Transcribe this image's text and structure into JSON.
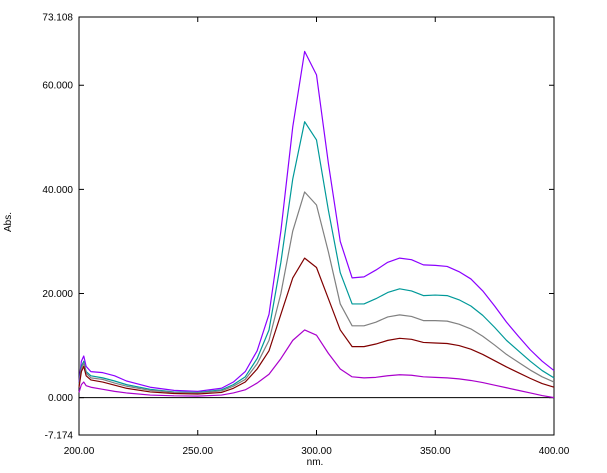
{
  "chart_data": {
    "type": "line",
    "xlabel": "nm.",
    "ylabel": "Abs.",
    "xlim": [
      200.0,
      400.0
    ],
    "ylim": [
      -7.174,
      73.108
    ],
    "x_ticks": [
      "200.00",
      "250.00",
      "300.00",
      "350.00",
      "400.00"
    ],
    "x_tick_values": [
      200,
      250,
      300,
      350,
      400
    ],
    "y_ticks": [
      "73.108",
      "60.000",
      "40.000",
      "20.000",
      "0.000",
      "-7.174"
    ],
    "y_tick_values": [
      73.108,
      60,
      40,
      20,
      0,
      -7.174
    ],
    "baseline": 0,
    "series": [
      {
        "color": "#8b00ff",
        "points": [
          [
            200,
            3
          ],
          [
            201,
            7
          ],
          [
            202,
            8
          ],
          [
            203,
            6
          ],
          [
            205,
            5
          ],
          [
            210,
            4.8
          ],
          [
            215,
            4.2
          ],
          [
            220,
            3.2
          ],
          [
            230,
            2
          ],
          [
            240,
            1.4
          ],
          [
            250,
            1.2
          ],
          [
            260,
            1.8
          ],
          [
            265,
            3
          ],
          [
            270,
            5
          ],
          [
            275,
            9
          ],
          [
            280,
            16
          ],
          [
            285,
            32
          ],
          [
            290,
            52
          ],
          [
            295,
            66.5
          ],
          [
            300,
            62
          ],
          [
            305,
            45
          ],
          [
            310,
            30
          ],
          [
            315,
            23
          ],
          [
            320,
            23.2
          ],
          [
            325,
            24.5
          ],
          [
            330,
            26
          ],
          [
            335,
            26.8
          ],
          [
            340,
            26.5
          ],
          [
            345,
            25.5
          ],
          [
            350,
            25.4
          ],
          [
            355,
            25.2
          ],
          [
            360,
            24.2
          ],
          [
            365,
            22.8
          ],
          [
            370,
            20.5
          ],
          [
            375,
            17.6
          ],
          [
            380,
            14.5
          ],
          [
            385,
            11.8
          ],
          [
            390,
            9.2
          ],
          [
            395,
            7
          ],
          [
            400,
            5.2
          ]
        ]
      },
      {
        "color": "#009999",
        "points": [
          [
            200,
            2.5
          ],
          [
            201,
            6
          ],
          [
            202,
            7
          ],
          [
            203,
            5
          ],
          [
            205,
            4.2
          ],
          [
            210,
            3.8
          ],
          [
            215,
            3.2
          ],
          [
            220,
            2.5
          ],
          [
            230,
            1.6
          ],
          [
            240,
            1.1
          ],
          [
            250,
            1
          ],
          [
            260,
            1.5
          ],
          [
            265,
            2.5
          ],
          [
            270,
            4
          ],
          [
            275,
            7.5
          ],
          [
            280,
            13
          ],
          [
            285,
            26
          ],
          [
            290,
            42
          ],
          [
            295,
            53
          ],
          [
            300,
            49.5
          ],
          [
            305,
            36
          ],
          [
            310,
            24
          ],
          [
            315,
            18
          ],
          [
            320,
            18
          ],
          [
            325,
            19
          ],
          [
            330,
            20.2
          ],
          [
            335,
            20.9
          ],
          [
            340,
            20.5
          ],
          [
            345,
            19.6
          ],
          [
            350,
            19.7
          ],
          [
            355,
            19.6
          ],
          [
            360,
            18.8
          ],
          [
            365,
            17.6
          ],
          [
            370,
            15.8
          ],
          [
            375,
            13.5
          ],
          [
            380,
            11
          ],
          [
            385,
            9
          ],
          [
            390,
            7
          ],
          [
            395,
            5.2
          ],
          [
            400,
            3.8
          ]
        ]
      },
      {
        "color": "#808080",
        "points": [
          [
            200,
            2.3
          ],
          [
            201,
            5.6
          ],
          [
            202,
            6.6
          ],
          [
            203,
            4.7
          ],
          [
            205,
            3.8
          ],
          [
            210,
            3.5
          ],
          [
            215,
            2.8
          ],
          [
            220,
            2.2
          ],
          [
            230,
            1.4
          ],
          [
            240,
            1
          ],
          [
            250,
            0.9
          ],
          [
            260,
            1.3
          ],
          [
            265,
            2.2
          ],
          [
            270,
            3.5
          ],
          [
            275,
            6.5
          ],
          [
            280,
            11
          ],
          [
            285,
            20
          ],
          [
            290,
            32
          ],
          [
            295,
            39.5
          ],
          [
            300,
            37
          ],
          [
            305,
            28
          ],
          [
            310,
            18
          ],
          [
            315,
            13.8
          ],
          [
            320,
            13.8
          ],
          [
            325,
            14.5
          ],
          [
            330,
            15.5
          ],
          [
            335,
            15.9
          ],
          [
            340,
            15.6
          ],
          [
            345,
            14.8
          ],
          [
            350,
            14.8
          ],
          [
            355,
            14.7
          ],
          [
            360,
            14.1
          ],
          [
            365,
            13.2
          ],
          [
            370,
            11.8
          ],
          [
            375,
            10.1
          ],
          [
            380,
            8.3
          ],
          [
            385,
            6.8
          ],
          [
            390,
            5.3
          ],
          [
            395,
            4
          ],
          [
            400,
            3
          ]
        ]
      },
      {
        "color": "#800000",
        "points": [
          [
            200,
            2
          ],
          [
            201,
            5
          ],
          [
            202,
            6
          ],
          [
            203,
            4.2
          ],
          [
            205,
            3.4
          ],
          [
            210,
            3
          ],
          [
            215,
            2.4
          ],
          [
            220,
            1.8
          ],
          [
            230,
            1.1
          ],
          [
            240,
            0.8
          ],
          [
            250,
            0.7
          ],
          [
            260,
            1
          ],
          [
            265,
            1.8
          ],
          [
            270,
            3
          ],
          [
            275,
            5.5
          ],
          [
            280,
            9
          ],
          [
            285,
            16
          ],
          [
            290,
            23
          ],
          [
            295,
            26.8
          ],
          [
            300,
            25
          ],
          [
            305,
            19
          ],
          [
            310,
            13
          ],
          [
            315,
            9.8
          ],
          [
            320,
            9.8
          ],
          [
            325,
            10.3
          ],
          [
            330,
            11
          ],
          [
            335,
            11.4
          ],
          [
            340,
            11.2
          ],
          [
            345,
            10.6
          ],
          [
            350,
            10.5
          ],
          [
            355,
            10.4
          ],
          [
            360,
            10
          ],
          [
            365,
            9.3
          ],
          [
            370,
            8.3
          ],
          [
            375,
            7.1
          ],
          [
            380,
            5.9
          ],
          [
            385,
            4.8
          ],
          [
            390,
            3.7
          ],
          [
            395,
            2.7
          ],
          [
            400,
            2
          ]
        ]
      },
      {
        "color": "#aa00cc",
        "points": [
          [
            200,
            1
          ],
          [
            201,
            2.5
          ],
          [
            202,
            3
          ],
          [
            203,
            2.3
          ],
          [
            205,
            2
          ],
          [
            210,
            1.6
          ],
          [
            215,
            1.2
          ],
          [
            220,
            0.9
          ],
          [
            230,
            0.5
          ],
          [
            240,
            0.35
          ],
          [
            250,
            0.3
          ],
          [
            260,
            0.5
          ],
          [
            265,
            0.9
          ],
          [
            270,
            1.5
          ],
          [
            275,
            2.8
          ],
          [
            280,
            4.5
          ],
          [
            285,
            7.5
          ],
          [
            290,
            11
          ],
          [
            295,
            13
          ],
          [
            300,
            12
          ],
          [
            305,
            8.5
          ],
          [
            310,
            5.5
          ],
          [
            315,
            4
          ],
          [
            320,
            3.8
          ],
          [
            325,
            3.9
          ],
          [
            330,
            4.2
          ],
          [
            335,
            4.4
          ],
          [
            340,
            4.3
          ],
          [
            345,
            4
          ],
          [
            350,
            3.9
          ],
          [
            355,
            3.8
          ],
          [
            360,
            3.6
          ],
          [
            365,
            3.3
          ],
          [
            370,
            2.9
          ],
          [
            375,
            2.4
          ],
          [
            380,
            1.9
          ],
          [
            385,
            1.4
          ],
          [
            390,
            0.9
          ],
          [
            395,
            0.4
          ],
          [
            400,
            0
          ]
        ]
      }
    ]
  }
}
